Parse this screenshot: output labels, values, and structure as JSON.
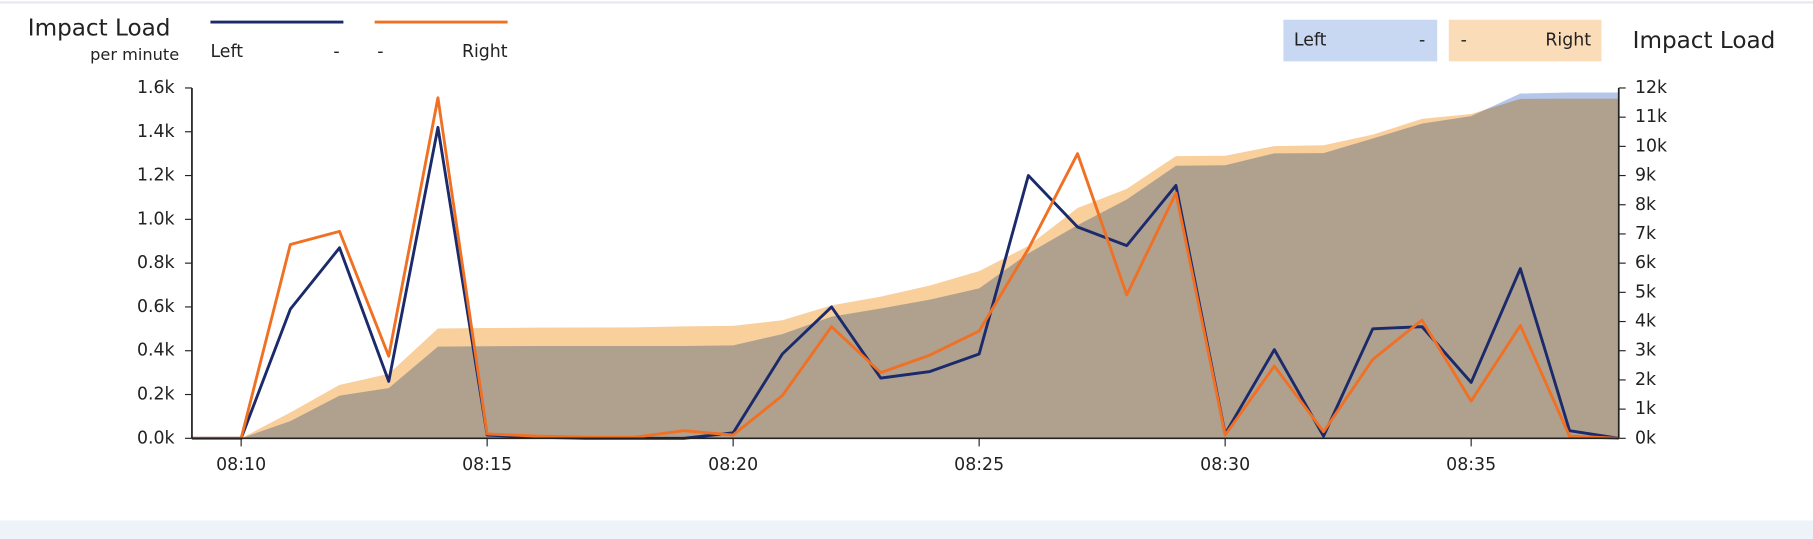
{
  "chart_data": {
    "type": "line",
    "title": "Impact Load",
    "subtitle": "per minute",
    "y2label": "Impact Load",
    "legend_dashes": [
      "-",
      "-",
      "-",
      "-"
    ],
    "x": [
      "08:09",
      "08:10",
      "08:11",
      "08:12",
      "08:13",
      "08:14",
      "08:15",
      "08:16",
      "08:17",
      "08:18",
      "08:19",
      "08:20",
      "08:21",
      "08:22",
      "08:23",
      "08:24",
      "08:25",
      "08:26",
      "08:27",
      "08:28",
      "08:29",
      "08:30",
      "08:31",
      "08:32",
      "08:33",
      "08:34",
      "08:35",
      "08:36",
      "08:37",
      "08:38"
    ],
    "xticks": [
      "08:10",
      "08:15",
      "08:20",
      "08:25",
      "08:30",
      "08:35"
    ],
    "ylim": [
      0,
      1600
    ],
    "yticks": [
      {
        "value": 0,
        "label": "0.0k"
      },
      {
        "value": 200,
        "label": "0.2k"
      },
      {
        "value": 400,
        "label": "0.4k"
      },
      {
        "value": 600,
        "label": "0.6k"
      },
      {
        "value": 800,
        "label": "0.8k"
      },
      {
        "value": 1000,
        "label": "1.0k"
      },
      {
        "value": 1200,
        "label": "1.2k"
      },
      {
        "value": 1400,
        "label": "1.4k"
      },
      {
        "value": 1600,
        "label": "1.6k"
      }
    ],
    "y2lim": [
      0,
      12000
    ],
    "y2ticks": [
      {
        "value": 0,
        "label": "0k"
      },
      {
        "value": 1000,
        "label": "1k"
      },
      {
        "value": 2000,
        "label": "2k"
      },
      {
        "value": 3000,
        "label": "3k"
      },
      {
        "value": 4000,
        "label": "4k"
      },
      {
        "value": 5000,
        "label": "5k"
      },
      {
        "value": 6000,
        "label": "6k"
      },
      {
        "value": 7000,
        "label": "7k"
      },
      {
        "value": 8000,
        "label": "8k"
      },
      {
        "value": 9000,
        "label": "9k"
      },
      {
        "value": 10000,
        "label": "10k"
      },
      {
        "value": 11000,
        "label": "11k"
      },
      {
        "value": 12000,
        "label": "12k"
      }
    ],
    "series": [
      {
        "name": "Left",
        "color": "#1b2a6b",
        "values": [
          0,
          0,
          590,
          870,
          260,
          1420,
          15,
          5,
          0,
          0,
          0,
          25,
          385,
          600,
          275,
          305,
          385,
          1200,
          965,
          880,
          1155,
          20,
          405,
          10,
          500,
          510,
          255,
          775,
          35,
          0
        ]
      },
      {
        "name": "Right",
        "color": "#f07024",
        "values": [
          0,
          0,
          885,
          945,
          375,
          1555,
          20,
          10,
          5,
          5,
          35,
          15,
          195,
          510,
          300,
          380,
          490,
          865,
          1300,
          655,
          1120,
          15,
          330,
          30,
          360,
          540,
          170,
          515,
          10,
          0
        ]
      },
      {
        "name": "Left",
        "color": "#b4c6ea",
        "axis": "y2",
        "values": [
          0,
          0,
          590,
          1460,
          1720,
          3140,
          3155,
          3160,
          3160,
          3160,
          3160,
          3185,
          3570,
          4170,
          4445,
          4750,
          5135,
          6335,
          7300,
          8180,
          9335,
          9355,
          9760,
          9770,
          10270,
          10780,
          11035,
          11810,
          11845,
          11845
        ]
      },
      {
        "name": "Right",
        "color": "#f9cf9c",
        "axis": "y2",
        "values": [
          0,
          0,
          885,
          1830,
          2205,
          3760,
          3780,
          3790,
          3795,
          3800,
          3835,
          3850,
          4045,
          4555,
          4855,
          5235,
          5725,
          6590,
          7890,
          8545,
          9665,
          9680,
          10010,
          10040,
          10400,
          10940,
          11110,
          11625,
          11635,
          11635
        ]
      }
    ]
  }
}
